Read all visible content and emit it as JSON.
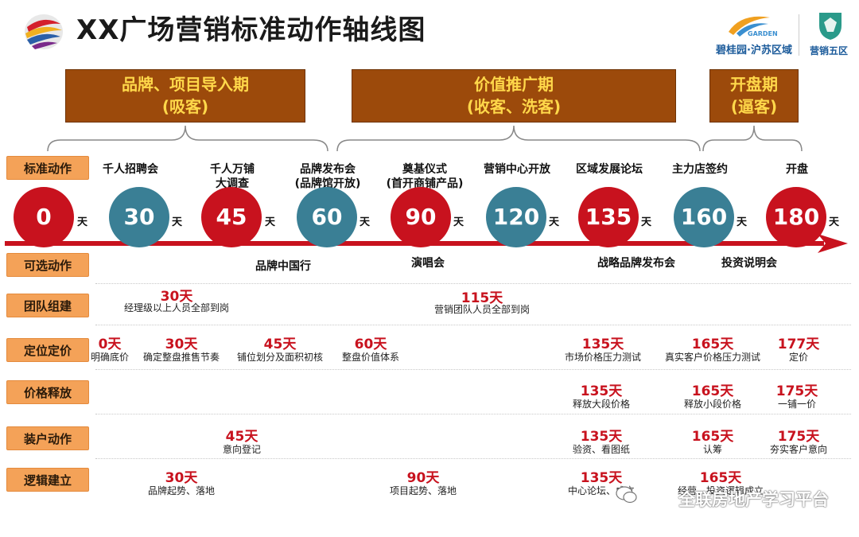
{
  "title": "XX广场营销标准动作轴线图",
  "brand": {
    "main": "碧桂园·沪苏区域",
    "sub": "GARDEN",
    "team": "营销五区"
  },
  "phases": [
    {
      "line1": "品牌、项目导入期",
      "line2": "(吸客)"
    },
    {
      "line1": "价值推广期",
      "line2": "(收客、洗客)"
    },
    {
      "line1": "开盘期",
      "line2": "(逼客)"
    }
  ],
  "rows": {
    "standard": "标准动作",
    "optional": "可选动作",
    "team": "团队组建",
    "pricing": "定位定价",
    "release": "价格释放",
    "install": "装户动作",
    "logic": "逻辑建立"
  },
  "day_unit": "天",
  "actions": [
    {
      "text": "千人招聘会"
    },
    {
      "text": "千人万铺\n大调查"
    },
    {
      "text": "品牌发布会\n(品牌馆开放)"
    },
    {
      "text": "奠基仪式\n(首开商铺产品)"
    },
    {
      "text": "营销中心开放"
    },
    {
      "text": "区域发展论坛"
    },
    {
      "text": "主力店签约"
    },
    {
      "text": "开盘"
    }
  ],
  "milestones": [
    {
      "day": "0",
      "color": "red"
    },
    {
      "day": "30",
      "color": "teal"
    },
    {
      "day": "45",
      "color": "red"
    },
    {
      "day": "60",
      "color": "teal"
    },
    {
      "day": "90",
      "color": "red"
    },
    {
      "day": "120",
      "color": "teal"
    },
    {
      "day": "135",
      "color": "red"
    },
    {
      "day": "160",
      "color": "teal"
    },
    {
      "day": "180",
      "color": "red"
    }
  ],
  "optional_actions": [
    "品牌中国行",
    "演唱会",
    "战略品牌发布会",
    "投资说明会"
  ],
  "team_items": [
    {
      "num": "30天",
      "desc": "经理级以上人员全部到岗"
    },
    {
      "num": "115天",
      "desc": "营销团队人员全部到岗"
    }
  ],
  "pricing_items": [
    {
      "num": "0天",
      "desc": "明确底价"
    },
    {
      "num": "30天",
      "desc": "确定整盘推售节奏"
    },
    {
      "num": "45天",
      "desc": "铺位划分及面积初核"
    },
    {
      "num": "60天",
      "desc": "整盘价值体系"
    },
    {
      "num": "135天",
      "desc": "市场价格压力测试"
    },
    {
      "num": "165天",
      "desc": "真实客户价格压力测试"
    },
    {
      "num": "177天",
      "desc": "定价"
    }
  ],
  "release_items": [
    {
      "num": "135天",
      "desc": "释放大段价格"
    },
    {
      "num": "165天",
      "desc": "释放小段价格"
    },
    {
      "num": "175天",
      "desc": "一铺一价"
    }
  ],
  "install_items": [
    {
      "num": "45天",
      "desc": "意向登记"
    },
    {
      "num": "135天",
      "desc": "验资、看图纸"
    },
    {
      "num": "165天",
      "desc": "认筹"
    },
    {
      "num": "175天",
      "desc": "夯实客户意向"
    }
  ],
  "logic_items": [
    {
      "num": "30天",
      "desc": "品牌起势、落地"
    },
    {
      "num": "90天",
      "desc": "项目起势、落地"
    },
    {
      "num": "135天",
      "desc": "中心论坛、成立"
    },
    {
      "num": "165天",
      "desc": "经营、投资逻辑成立"
    }
  ],
  "watermark": "全联房地产学习平台",
  "colors": {
    "phase_bg": "#9c4a0b",
    "phase_text": "#ffd84a",
    "accent_red": "#c8121e",
    "accent_teal": "#3a7f95",
    "label_bg": "#f4a258"
  }
}
